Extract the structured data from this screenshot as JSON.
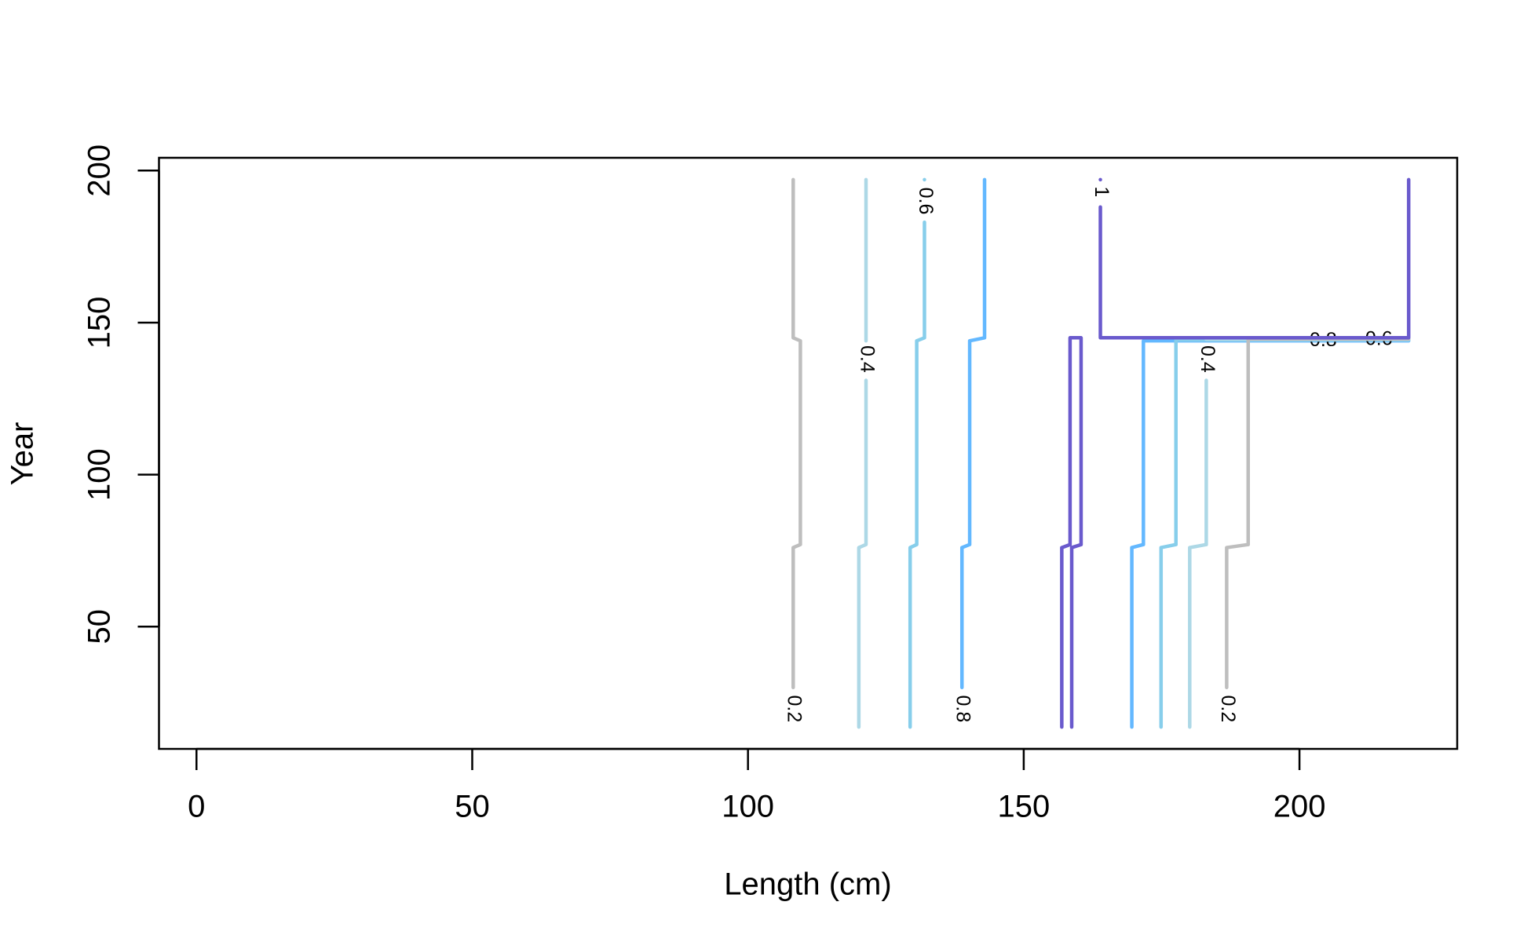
{
  "chart_data": {
    "type": "contour",
    "x_label": "Length (cm)",
    "y_label": "Year",
    "xlim": [
      -6.8,
      228.6
    ],
    "ylim": [
      9.8,
      204.2
    ],
    "xticks": [
      0,
      50,
      100,
      150,
      200
    ],
    "yticks": [
      50,
      100,
      150,
      200
    ],
    "series": [
      {
        "name": "0.2",
        "color": "#BEBEBE",
        "x": [
          108.2,
          108.2,
          109.5,
          109.5,
          108.2,
          108.2
        ],
        "y": [
          30,
          76,
          77,
          144,
          145,
          197
        ],
        "labels": [
          [
            108.2,
            23
          ]
        ]
      },
      {
        "name": "0.4",
        "color": "#ADD8E6",
        "x": [
          120.1,
          120.1,
          121.4,
          121.4,
          null,
          121.4,
          121.4
        ],
        "y": [
          17,
          76,
          77,
          131,
          null,
          144,
          197
        ],
        "labels": [
          [
            121.4,
            138
          ]
        ]
      },
      {
        "name": "0.6",
        "color": "#87CEEB",
        "x": [
          129.4,
          129.4,
          130.6,
          130.6,
          132,
          132,
          null,
          132
        ],
        "y": [
          17,
          76,
          77,
          144,
          145,
          183,
          null,
          197
        ],
        "labels": [
          [
            132,
            190
          ]
        ]
      },
      {
        "name": "0.8",
        "color": "#63B8FF",
        "x": [
          138.8,
          138.8,
          140.2,
          140.2,
          142.9,
          142.9
        ],
        "y": [
          30,
          76,
          77,
          144,
          145,
          197
        ],
        "labels": [
          [
            138.8,
            23
          ]
        ]
      },
      {
        "name": "0.8",
        "color": "#63B8FF",
        "x": [
          169.6,
          169.6,
          171.7,
          171.7,
          219.8
        ],
        "y": [
          17,
          76,
          77,
          144,
          144
        ],
        "labels": [
          [
            204.3,
            144
          ]
        ]
      },
      {
        "name": "0.6",
        "color": "#87CEEB",
        "x": [
          174.9,
          174.9,
          177.6,
          177.6,
          219.8
        ],
        "y": [
          17,
          76,
          77,
          144.3,
          144.3
        ],
        "labels": [
          [
            214.4,
            144.3
          ]
        ]
      },
      {
        "name": "0.4",
        "color": "#ADD8E6",
        "x": [
          180.1,
          180.1,
          183.1,
          183.1,
          null,
          183.1,
          219.8
        ],
        "y": [
          17,
          76,
          77,
          131,
          null,
          144.5,
          144.5
        ],
        "labels": [
          [
            183.1,
            138
          ]
        ]
      },
      {
        "name": "0.2",
        "color": "#BEBEBE",
        "x": [
          186.8,
          186.8,
          190.7,
          190.7,
          219.8
        ],
        "y": [
          30,
          76,
          77,
          144.6,
          144.6
        ],
        "labels": [
          [
            186.8,
            23
          ]
        ]
      },
      {
        "name": "1",
        "color": "#6A5ACD",
        "x": [
          156.9,
          156.9,
          158.4,
          158.4,
          160.4,
          160.4,
          158.7,
          158.7
        ],
        "y": [
          17,
          76,
          77,
          145,
          145,
          77,
          76,
          17
        ]
      },
      {
        "name": "1",
        "color": "#6A5ACD",
        "x": [
          219.8,
          219.8,
          163.9,
          163.9,
          null,
          163.9
        ],
        "y": [
          197,
          145,
          145,
          188,
          null,
          197
        ],
        "labels": [
          [
            163.9,
            193
          ]
        ]
      }
    ]
  }
}
